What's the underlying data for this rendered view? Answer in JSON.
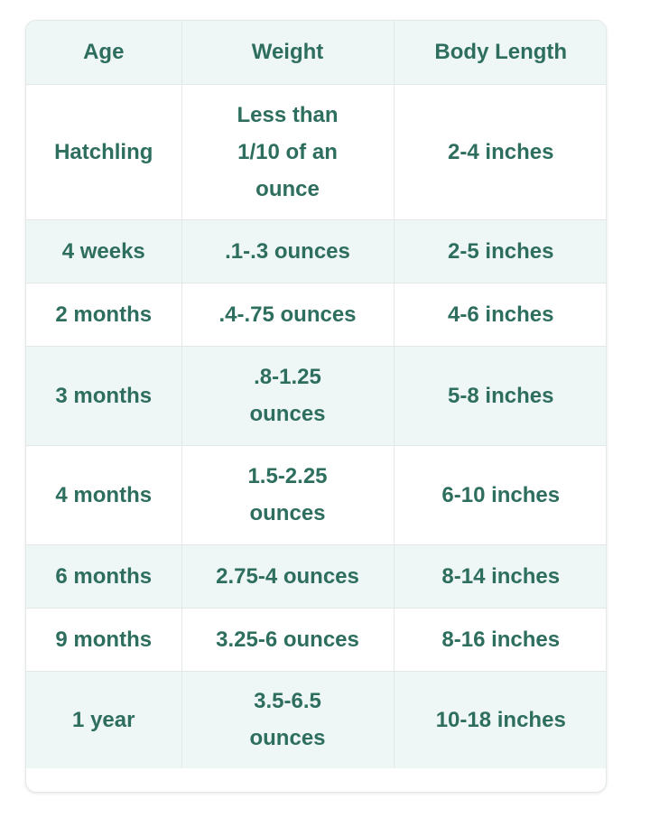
{
  "colors": {
    "text": "#2d6e5e",
    "stripe": "#eff6f6",
    "border": "#e2e7e7"
  },
  "table": {
    "headers": [
      "Age",
      "Weight",
      "Body Length"
    ],
    "rows": [
      [
        "Hatchling",
        "Less than 1/10 of an ounce",
        "2-4 inches"
      ],
      [
        "4 weeks",
        ".1-.3 ounces",
        "2-5 inches"
      ],
      [
        "2 months",
        ".4-.75 ounces",
        "4-6 inches"
      ],
      [
        "3 months",
        ".8-1.25 ounces",
        "5-8 inches"
      ],
      [
        "4 months",
        "1.5-2.25 ounces",
        "6-10 inches"
      ],
      [
        "6 months",
        "2.75-4 ounces",
        "8-14 inches"
      ],
      [
        "9 months",
        "3.25-6 ounces",
        "8-16 inches"
      ],
      [
        "1 year",
        "3.5-6.5 ounces",
        "10-18 inches"
      ]
    ]
  }
}
